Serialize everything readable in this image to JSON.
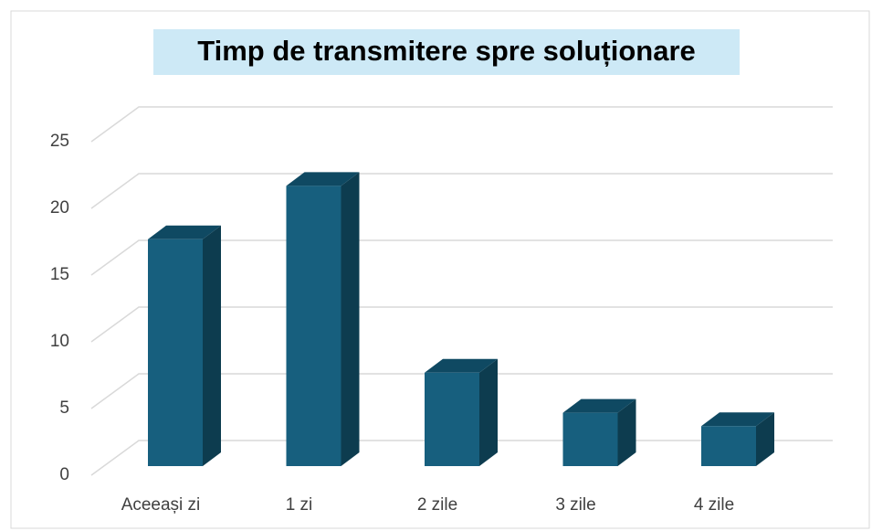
{
  "chart_data": {
    "type": "bar3d",
    "title": "Timp de transmitere spre soluționare",
    "categories": [
      "Aceeași zi",
      "1 zi",
      "2 zile",
      "3 zile",
      "4 zile"
    ],
    "values": [
      17,
      21,
      7,
      4,
      3
    ],
    "color": "#175f7e",
    "ylim": [
      0,
      25
    ],
    "yticks": [
      0,
      5,
      10,
      15,
      20,
      25
    ],
    "grid": true
  }
}
